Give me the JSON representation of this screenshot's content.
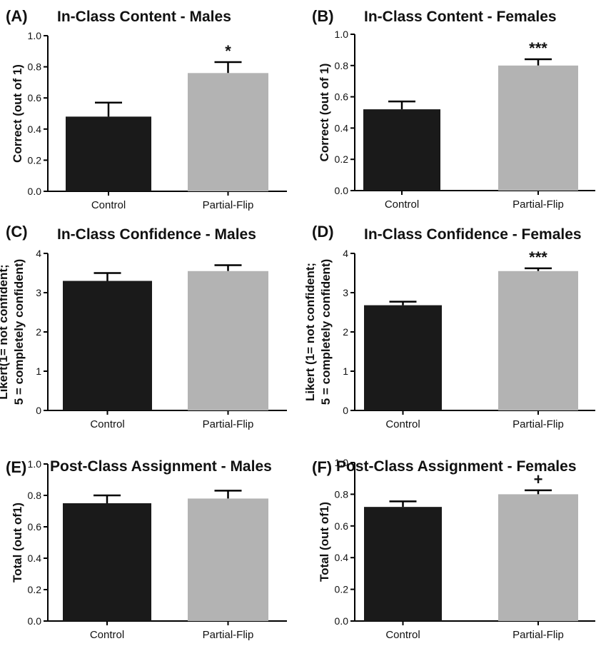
{
  "colors": {
    "control": "#1a1a1a",
    "partial_flip": "#b3b3b3",
    "axis": "#000000"
  },
  "chart_data": [
    {
      "type": "bar",
      "letter": "(A)",
      "title": "In-Class Content - Males",
      "xlabel": "",
      "ylabel": [
        "Correct (out of 1)"
      ],
      "categories": [
        "Control",
        "Partial-Flip"
      ],
      "values": [
        0.48,
        0.76
      ],
      "errors": [
        0.09,
        0.07
      ],
      "ylim": [
        0,
        1.0
      ],
      "yticks": [
        "0.0",
        "0.2",
        "0.4",
        "0.6",
        "0.8",
        "1.0"
      ],
      "significance": "*"
    },
    {
      "type": "bar",
      "letter": "(B)",
      "title": "In-Class Content - Females",
      "xlabel": "",
      "ylabel": [
        "Correct (out of 1)"
      ],
      "categories": [
        "Control",
        "Partial-Flip"
      ],
      "values": [
        0.52,
        0.8
      ],
      "errors": [
        0.05,
        0.04
      ],
      "ylim": [
        0,
        1.0
      ],
      "yticks": [
        "0.0",
        "0.2",
        "0.4",
        "0.6",
        "0.8",
        "1.0"
      ],
      "significance": "***"
    },
    {
      "type": "bar",
      "letter": "(C)",
      "title": "In-Class Confidence - Males",
      "xlabel": "",
      "ylabel": [
        "Likert(1= not confident;",
        "5 = completely confident)"
      ],
      "categories": [
        "Control",
        "Partial-Flip"
      ],
      "values": [
        3.3,
        3.55
      ],
      "errors": [
        0.2,
        0.15
      ],
      "ylim": [
        0,
        4
      ],
      "yticks": [
        "0",
        "1",
        "2",
        "3",
        "4"
      ],
      "significance": ""
    },
    {
      "type": "bar",
      "letter": "(D)",
      "title": "In-Class Confidence - Females",
      "xlabel": "",
      "ylabel": [
        "Likert (1= not confident;",
        "5 = completely confident)"
      ],
      "categories": [
        "Control",
        "Partial-Flip"
      ],
      "values": [
        2.68,
        3.55
      ],
      "errors": [
        0.09,
        0.07
      ],
      "ylim": [
        0,
        4
      ],
      "yticks": [
        "0",
        "1",
        "2",
        "3",
        "4"
      ],
      "significance": "***"
    },
    {
      "type": "bar",
      "letter": "(E)",
      "title": "Post-Class Assignment - Males",
      "xlabel": "",
      "ylabel": [
        "Total (out of1)"
      ],
      "categories": [
        "Control",
        "Partial-Flip"
      ],
      "values": [
        0.75,
        0.78
      ],
      "errors": [
        0.05,
        0.05
      ],
      "ylim": [
        0,
        1.0
      ],
      "yticks": [
        "0.0",
        "0.2",
        "0.4",
        "0.6",
        "0.8",
        "1.0"
      ],
      "significance": ""
    },
    {
      "type": "bar",
      "letter": "(F)",
      "title": "Post-Class Assignment - Females",
      "xlabel": "",
      "ylabel": [
        "Total (out of1)"
      ],
      "categories": [
        "Control",
        "Partial-Flip"
      ],
      "values": [
        0.72,
        0.8
      ],
      "errors": [
        0.035,
        0.025
      ],
      "ylim": [
        0,
        1.0
      ],
      "yticks": [
        "0.0",
        "0.2",
        "0.4",
        "0.6",
        "0.8",
        "1.0"
      ],
      "significance": "+"
    }
  ]
}
